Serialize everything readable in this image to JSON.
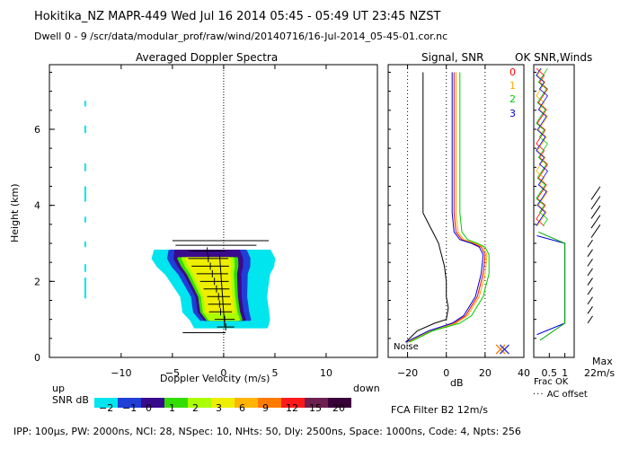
{
  "header": {
    "line1": "Hokitika_NZ   MAPR-449   Wed Jul 16 2014 05:45 - 05:49 UT 23:45 NZST",
    "line2": "Dwell   0  -  9     /scr/data/modular_prof/raw/wind/20140716/16-Jul-2014_05-45-01.cor.nc"
  },
  "footer": {
    "params": "IPP: 100μs,   PW: 2000ns,   NCI:  28,   NSpec: 10,  NHts: 50,   Dly: 2500ns,   Space: 1000ns,   Code: 4,   Npts: 256",
    "fca": "FCA Filter B2 12m/s"
  },
  "chart_data": [
    {
      "type": "heatmap",
      "title": "Averaged Doppler Spectra",
      "xlabel": "Doppler Velocity (m/s)",
      "ylabel": "Height (km)",
      "xlim": [
        -17,
        15
      ],
      "ylim": [
        0,
        7.7
      ],
      "x_ticks": [
        "-10",
        "-5",
        "0",
        "5",
        "10"
      ],
      "y_ticks": [
        "0",
        "2",
        "4",
        "6"
      ],
      "x_left_label": "up",
      "x_right_label": "down",
      "colorbar_label": "SNR dB",
      "colorbar_values": [
        "-2",
        "-1",
        "0",
        "1",
        "2",
        "3",
        "6",
        "9",
        "12",
        "15",
        "20"
      ],
      "colorbar_colors": [
        "#00e5ee",
        "#1f3fd6",
        "#3a0a8c",
        "#33dd00",
        "#aaff00",
        "#eeee00",
        "#ffb400",
        "#ff7a00",
        "#ff1a1a",
        "#6e1f4f",
        "#3a003a"
      ],
      "peak_profile": [
        {
          "height_km": 0.8,
          "velocity": 0.2,
          "width": 0.6
        },
        {
          "height_km": 1.0,
          "velocity": 0.1,
          "width": 0.7
        },
        {
          "height_km": 1.2,
          "velocity": -0.3,
          "width": 0.8
        },
        {
          "height_km": 1.4,
          "velocity": -0.4,
          "width": 0.8
        },
        {
          "height_km": 1.6,
          "velocity": -0.5,
          "width": 0.8
        },
        {
          "height_km": 1.8,
          "velocity": -0.7,
          "width": 0.9
        },
        {
          "height_km": 2.0,
          "velocity": -0.9,
          "width": 1.0
        },
        {
          "height_km": 2.2,
          "velocity": -1.1,
          "width": 1.1
        },
        {
          "height_km": 2.4,
          "velocity": -1.3,
          "width": 1.3
        },
        {
          "height_km": 2.6,
          "velocity": -1.5,
          "width": 1.4
        },
        {
          "height_km": 2.8,
          "velocity": -1.6,
          "width": 1.3
        }
      ],
      "noise_streak_velocity": -13.5
    },
    {
      "type": "line",
      "title": "Signal, SNR",
      "xlabel": "dB",
      "xlim": [
        -30,
        40
      ],
      "ylim": [
        0,
        7.7
      ],
      "x_ticks": [
        "-20",
        "0",
        "20",
        "40"
      ],
      "noise_label": "Noise",
      "series": [
        {
          "name": "signal",
          "color": "#000000",
          "x": [
            -21,
            -15,
            -6,
            0,
            1,
            0,
            0,
            -1,
            -2,
            -3,
            -4,
            -6,
            -8,
            -10,
            -12,
            -12,
            -12
          ],
          "y": [
            0.4,
            0.7,
            0.9,
            1.0,
            1.3,
            1.6,
            2.0,
            2.4,
            2.6,
            2.8,
            3.0,
            3.2,
            3.4,
            3.6,
            3.8,
            5.5,
            7.5
          ]
        },
        {
          "name": "snr-0",
          "color": "#ff0000",
          "x": [
            -20,
            -8,
            4,
            10,
            16,
            19,
            20,
            18,
            14,
            8,
            5,
            4,
            4,
            4
          ],
          "y": [
            0.4,
            0.7,
            0.9,
            1.1,
            1.6,
            2.2,
            2.7,
            2.9,
            3.0,
            3.1,
            3.3,
            3.8,
            5.5,
            7.5
          ]
        },
        {
          "name": "snr-1",
          "color": "#ffaa00",
          "x": [
            -20,
            -8,
            5,
            11,
            17,
            20,
            21,
            19,
            15,
            9,
            6,
            5,
            5,
            5
          ],
          "y": [
            0.4,
            0.7,
            0.9,
            1.1,
            1.6,
            2.2,
            2.7,
            2.9,
            3.0,
            3.1,
            3.3,
            3.8,
            5.5,
            7.5
          ]
        },
        {
          "name": "snr-2",
          "color": "#00cc00",
          "x": [
            -19,
            -7,
            7,
            13,
            19,
            22,
            22,
            20,
            16,
            11,
            8,
            7,
            7,
            7
          ],
          "y": [
            0.4,
            0.7,
            0.9,
            1.1,
            1.6,
            2.2,
            2.7,
            2.9,
            3.0,
            3.1,
            3.3,
            3.8,
            5.5,
            7.5
          ]
        },
        {
          "name": "snr-3",
          "color": "#0000dd",
          "x": [
            -21,
            -9,
            3,
            9,
            15,
            18,
            19,
            17,
            13,
            7,
            4,
            3,
            3,
            3
          ],
          "y": [
            0.4,
            0.7,
            0.9,
            1.1,
            1.6,
            2.2,
            2.7,
            2.9,
            3.0,
            3.1,
            3.3,
            3.8,
            5.5,
            7.5
          ]
        }
      ]
    },
    {
      "type": "line",
      "title": "OK SNR,Winds",
      "legend": [
        "0",
        "1",
        "2",
        "3"
      ],
      "legend_colors": [
        "#ff0000",
        "#ffaa00",
        "#00cc00",
        "#0000dd"
      ],
      "x_ticks": [
        "0.5",
        "1"
      ],
      "xlim": [
        0,
        1.3
      ],
      "xlabel": "Frac OK",
      "note": "AC offset",
      "max_label_1": "Max",
      "max_label_2": "22m/s",
      "series": [
        {
          "name": "frac-ok",
          "color": "#0000dd",
          "x": [
            0.1,
            1.0,
            1.0,
            0.1
          ],
          "y": [
            0.6,
            0.9,
            3.0,
            3.2
          ]
        }
      ]
    }
  ]
}
